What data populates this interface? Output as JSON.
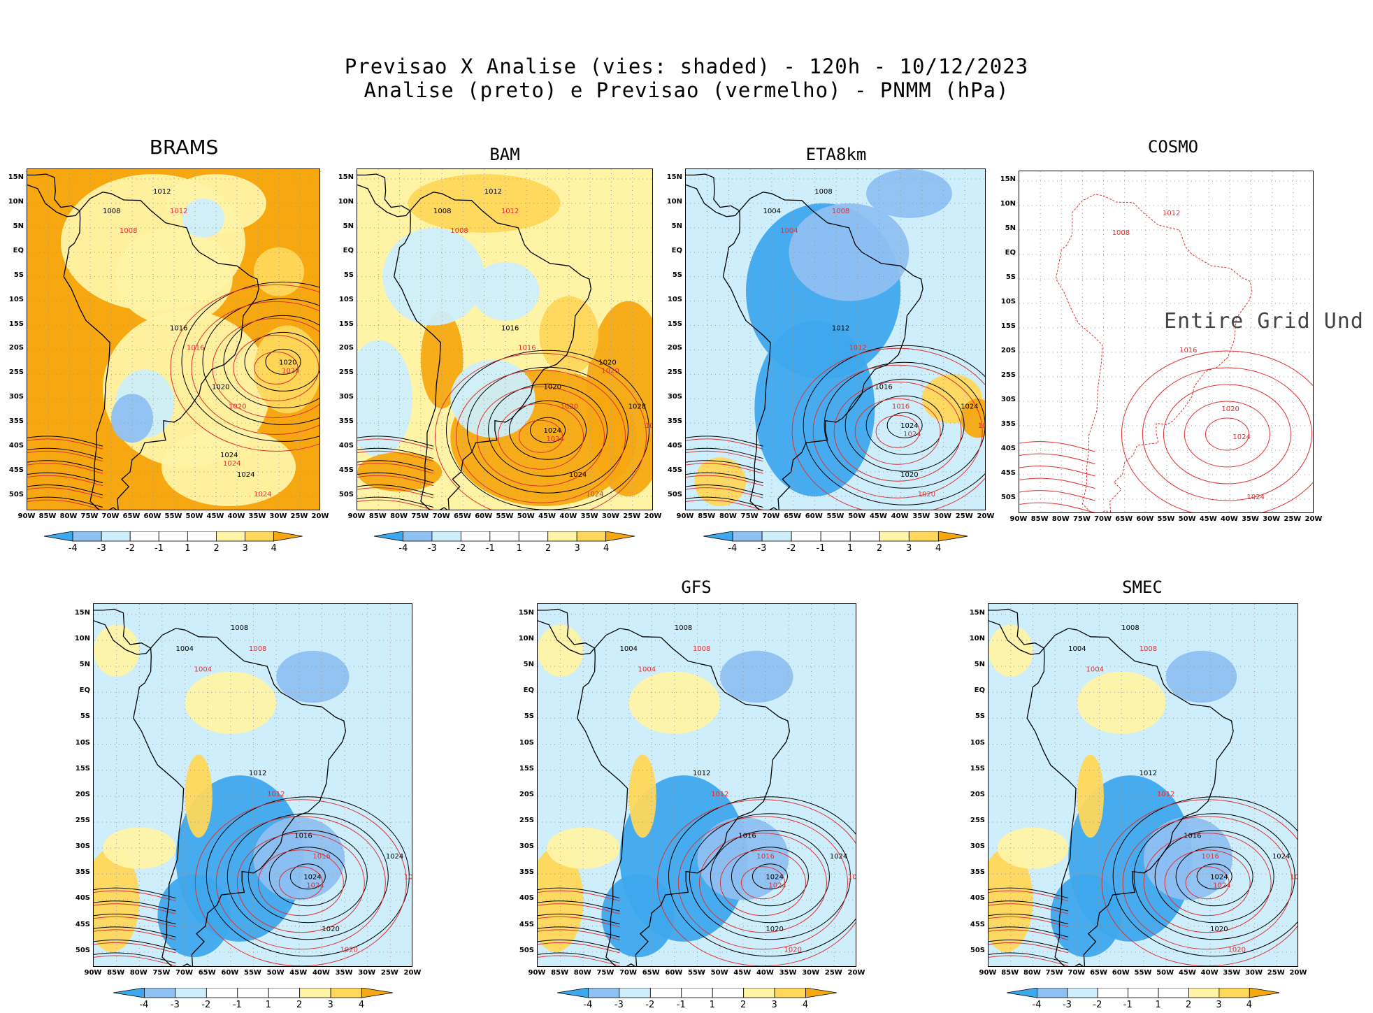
{
  "title_line1": "Previsao X Analise (vies: shaded) - 120h - 10/12/2023",
  "title_line2": "Analise (preto) e Previsao (vermelho) - PNMM (hPa)",
  "colors": {
    "shade_neg4": "#3ea8ee",
    "shade_neg3": "#8fc0f2",
    "shade_neg2": "#cdeefa",
    "shade_pos2": "#fff3a6",
    "shade_pos3": "#ffd75a",
    "shade_pos4": "#f7a811",
    "analysis_contour": "#000000",
    "forecast_contour": "#e03030"
  },
  "chart_data": {
    "type": "heatmap",
    "variable": "PNMM (hPa)",
    "lead_time": "120h",
    "valid_date": "10/12/2023",
    "shading": "vies",
    "lat_ticks": [
      "15N",
      "10N",
      "5N",
      "EQ",
      "5S",
      "10S",
      "15S",
      "20S",
      "25S",
      "30S",
      "35S",
      "40S",
      "45S",
      "50S"
    ],
    "lon_ticks": [
      "90W",
      "85W",
      "80W",
      "75W",
      "70W",
      "65W",
      "60W",
      "55W",
      "50W",
      "45W",
      "40W",
      "35W",
      "30W",
      "25W",
      "20W"
    ],
    "lat_range": [
      17,
      -53
    ],
    "lon_range": [
      -90,
      -20
    ],
    "colorbar_levels": [
      "-4",
      "-3",
      "-2",
      "-1",
      "1",
      "2",
      "3",
      "4"
    ],
    "panels": [
      {
        "name": "BRAMS",
        "bias": "positive",
        "contour_labels": [
          "1008",
          "1012",
          "1016",
          "1020",
          "1024"
        ],
        "highs": [
          {
            "label": "1020",
            "lon": -30,
            "lat": -23
          },
          {
            "label": "1024",
            "lon": -44,
            "lat": -42
          }
        ]
      },
      {
        "name": "BAM",
        "bias": "positive",
        "contour_labels": [
          "1008",
          "1012",
          "1016",
          "1020",
          "1024",
          "1028"
        ],
        "highs": [
          {
            "label": "1024",
            "lon": -46,
            "lat": -37
          },
          {
            "label": "1020",
            "lon": -33,
            "lat": -23
          }
        ]
      },
      {
        "name": "ETA8km",
        "bias": "negative",
        "contour_labels": [
          "1004",
          "1008",
          "1012",
          "1016",
          "1020",
          "1024"
        ],
        "highs": [
          {
            "label": "1024",
            "lon": -40,
            "lat": -36
          }
        ]
      },
      {
        "name": "COSMO",
        "bias": "undefined",
        "note": "Entire Grid Und",
        "contour_labels": [
          "1008",
          "1012",
          "1016",
          "1020",
          "1024"
        ],
        "highs": [
          {
            "label": "1024",
            "lon": -40,
            "lat": -36
          }
        ]
      },
      {
        "name": "",
        "bias": "negative",
        "contour_labels": [
          "1004",
          "1008",
          "1012",
          "1016",
          "1020",
          "1024"
        ],
        "highs": [
          {
            "label": "1024",
            "lon": -44,
            "lat": -36
          }
        ]
      },
      {
        "name": "GFS",
        "bias": "negative",
        "contour_labels": [
          "1004",
          "1008",
          "1012",
          "1016",
          "1020",
          "1024"
        ],
        "highs": [
          {
            "label": "1024",
            "lon": -40,
            "lat": -36
          }
        ]
      },
      {
        "name": "SMEC",
        "bias": "negative",
        "contour_labels": [
          "1004",
          "1008",
          "1012",
          "1016",
          "1020",
          "1024"
        ],
        "highs": [
          {
            "label": "1024",
            "lon": -40,
            "lat": -36
          }
        ]
      }
    ]
  }
}
